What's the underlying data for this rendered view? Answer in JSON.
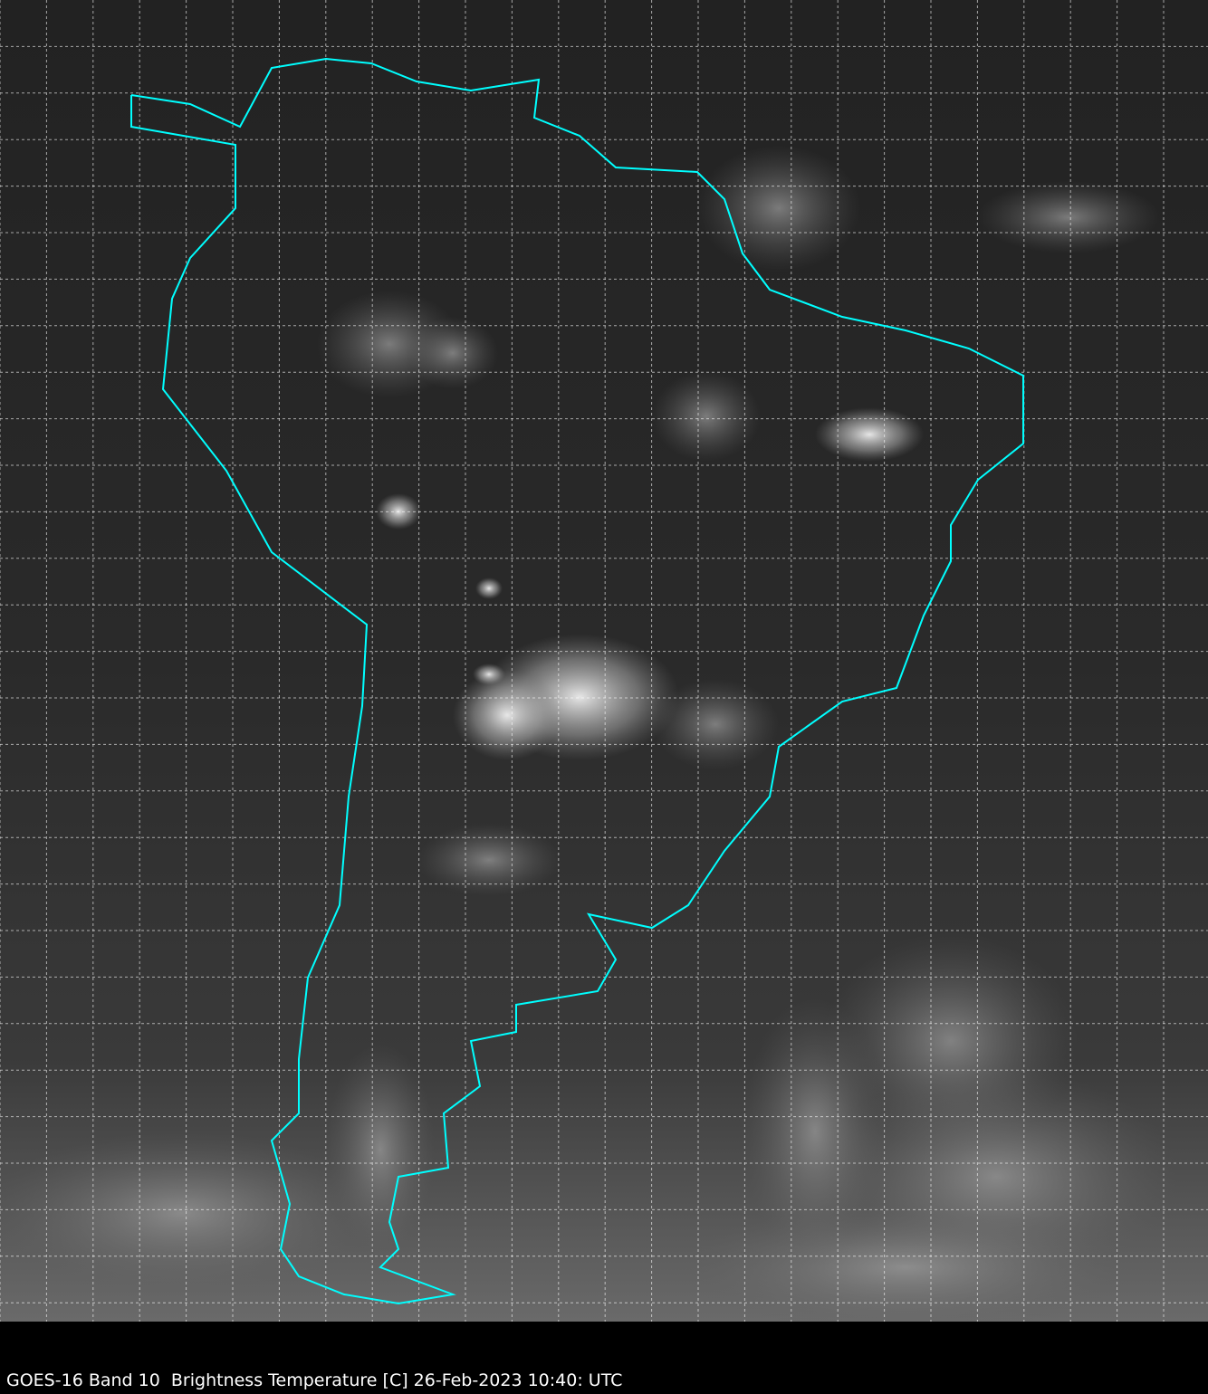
{
  "caption": "GOES-16 Band 10  Brightness Temperature [C] 26-Feb-2023 10:40: UTC",
  "colors": {
    "outline": "#00ffff",
    "grid": "#ffffff",
    "background": "#000000"
  },
  "map": {
    "region": "South America",
    "imagery": "grayscale infrared brightness temperature",
    "graticule": "dashed"
  }
}
